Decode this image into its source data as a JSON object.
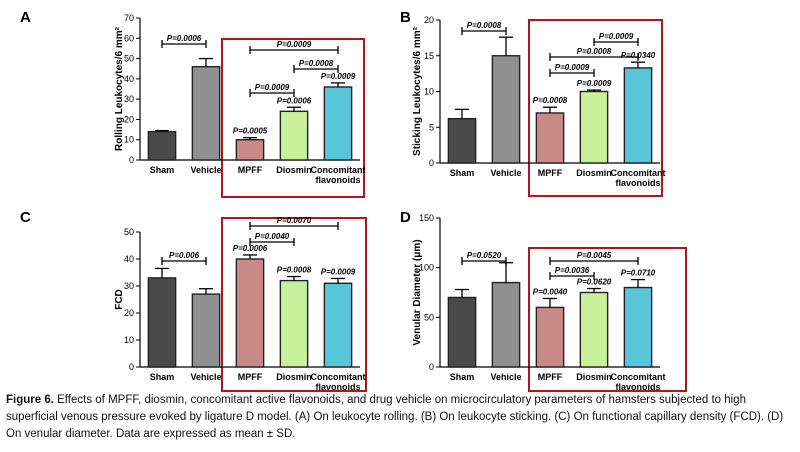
{
  "figure": {
    "caption_label": "Figure 6.",
    "caption_text": "Effects of MPFF, diosmin, concomitant active flavonoids, and drug vehicle on microcirculatory parameters of hamsters subjected to high superficial venous pressure evoked by ligature D model. (A) On leukocyte rolling. (B) On leukocyte sticking. (C) On functional capillary density (FCD). (D) On venular diameter. Data are expressed as mean ± SD."
  },
  "colors": {
    "Sham": "#4a4a4a",
    "Vehicle": "#909090",
    "MPFF": "#c98a87",
    "Diosmin": "#c9f09a",
    "Concomitant": "#59c5d9",
    "highlight_box": "#b0161c"
  },
  "chart_data": [
    {
      "panel": "A",
      "type": "bar",
      "ylabel": "Rolling Leukocytes/6 mm²",
      "ylim": [
        0,
        70
      ],
      "yticks": [
        0,
        10,
        20,
        30,
        40,
        50,
        60,
        70
      ],
      "categories": [
        "Sham",
        "Vehicle",
        "MPFF",
        "Diosmin",
        "Concomitant\nflavonoids"
      ],
      "values": [
        14,
        46,
        10,
        24,
        36
      ],
      "errors": [
        0.5,
        4,
        1,
        2,
        2
      ],
      "bar_pvalues": [
        null,
        null,
        "P=0.0005",
        "P=0.0006",
        "P=0.0009"
      ],
      "brackets": [
        {
          "from": 0,
          "to": 1,
          "label": "P=0.0006"
        },
        {
          "from": 2,
          "to": 4,
          "label": "P=0.0009"
        },
        {
          "from": 3,
          "to": 4,
          "label": "P=0.0008"
        },
        {
          "from": 2,
          "to": 3,
          "label": "P=0.0009"
        }
      ]
    },
    {
      "panel": "B",
      "type": "bar",
      "ylabel": "Sticking Leukocytes/6 mm²",
      "ylim": [
        0,
        20
      ],
      "yticks": [
        0,
        5,
        10,
        15,
        20
      ],
      "categories": [
        "Sham",
        "Vehicle",
        "MPFF",
        "Diosmin",
        "Concomitant\nflavonoids"
      ],
      "values": [
        6.2,
        15,
        7,
        10,
        13.3
      ],
      "errors": [
        1.3,
        2.6,
        0.8,
        0.2,
        0.8
      ],
      "bar_pvalues": [
        null,
        null,
        "P=0.0008",
        "P=0.0009",
        "P=0.0340"
      ],
      "brackets": [
        {
          "from": 0,
          "to": 1,
          "label": "P=0.0008"
        },
        {
          "from": 2,
          "to": 4,
          "label": "P=0.0008"
        },
        {
          "from": 3,
          "to": 4,
          "label": "P=0.0009"
        },
        {
          "from": 2,
          "to": 3,
          "label": "P=0.0009"
        }
      ]
    },
    {
      "panel": "C",
      "type": "bar",
      "ylabel": "FCD",
      "ylim": [
        0,
        50
      ],
      "yticks": [
        0,
        10,
        20,
        30,
        40,
        50
      ],
      "categories": [
        "Sham",
        "Vehicle",
        "MPFF",
        "Diosmin",
        "Concomitant\nflavonoids"
      ],
      "values": [
        33,
        27,
        40,
        32,
        31
      ],
      "errors": [
        3.5,
        2,
        1.5,
        1.5,
        1.8
      ],
      "bar_pvalues": [
        null,
        null,
        "P=0.0006",
        "P=0.0008",
        "P=0.0009"
      ],
      "brackets": [
        {
          "from": 0,
          "to": 1,
          "label": "P=0.006"
        },
        {
          "from": 2,
          "to": 4,
          "label": "P=0.0070"
        },
        {
          "from": 2,
          "to": 3,
          "label": "P=0.0040"
        }
      ]
    },
    {
      "panel": "D",
      "type": "bar",
      "ylabel": "Venular Diameter (μm)",
      "ylim": [
        0,
        150
      ],
      "yticks": [
        0,
        50,
        100,
        150
      ],
      "categories": [
        "Sham",
        "Vehicle",
        "MPFF",
        "Diosmin",
        "Concomitant\nflavonoids"
      ],
      "values": [
        70,
        85,
        60,
        75,
        80
      ],
      "errors": [
        8,
        20,
        9,
        4,
        8
      ],
      "bar_pvalues": [
        null,
        null,
        "P=0.0040",
        "P=0.0620",
        "P=0.0710"
      ],
      "brackets": [
        {
          "from": 0,
          "to": 1,
          "label": "P=0.0520"
        },
        {
          "from": 2,
          "to": 4,
          "label": "P=0.0045"
        },
        {
          "from": 2,
          "to": 3,
          "label": "P=0.0036"
        }
      ]
    }
  ]
}
